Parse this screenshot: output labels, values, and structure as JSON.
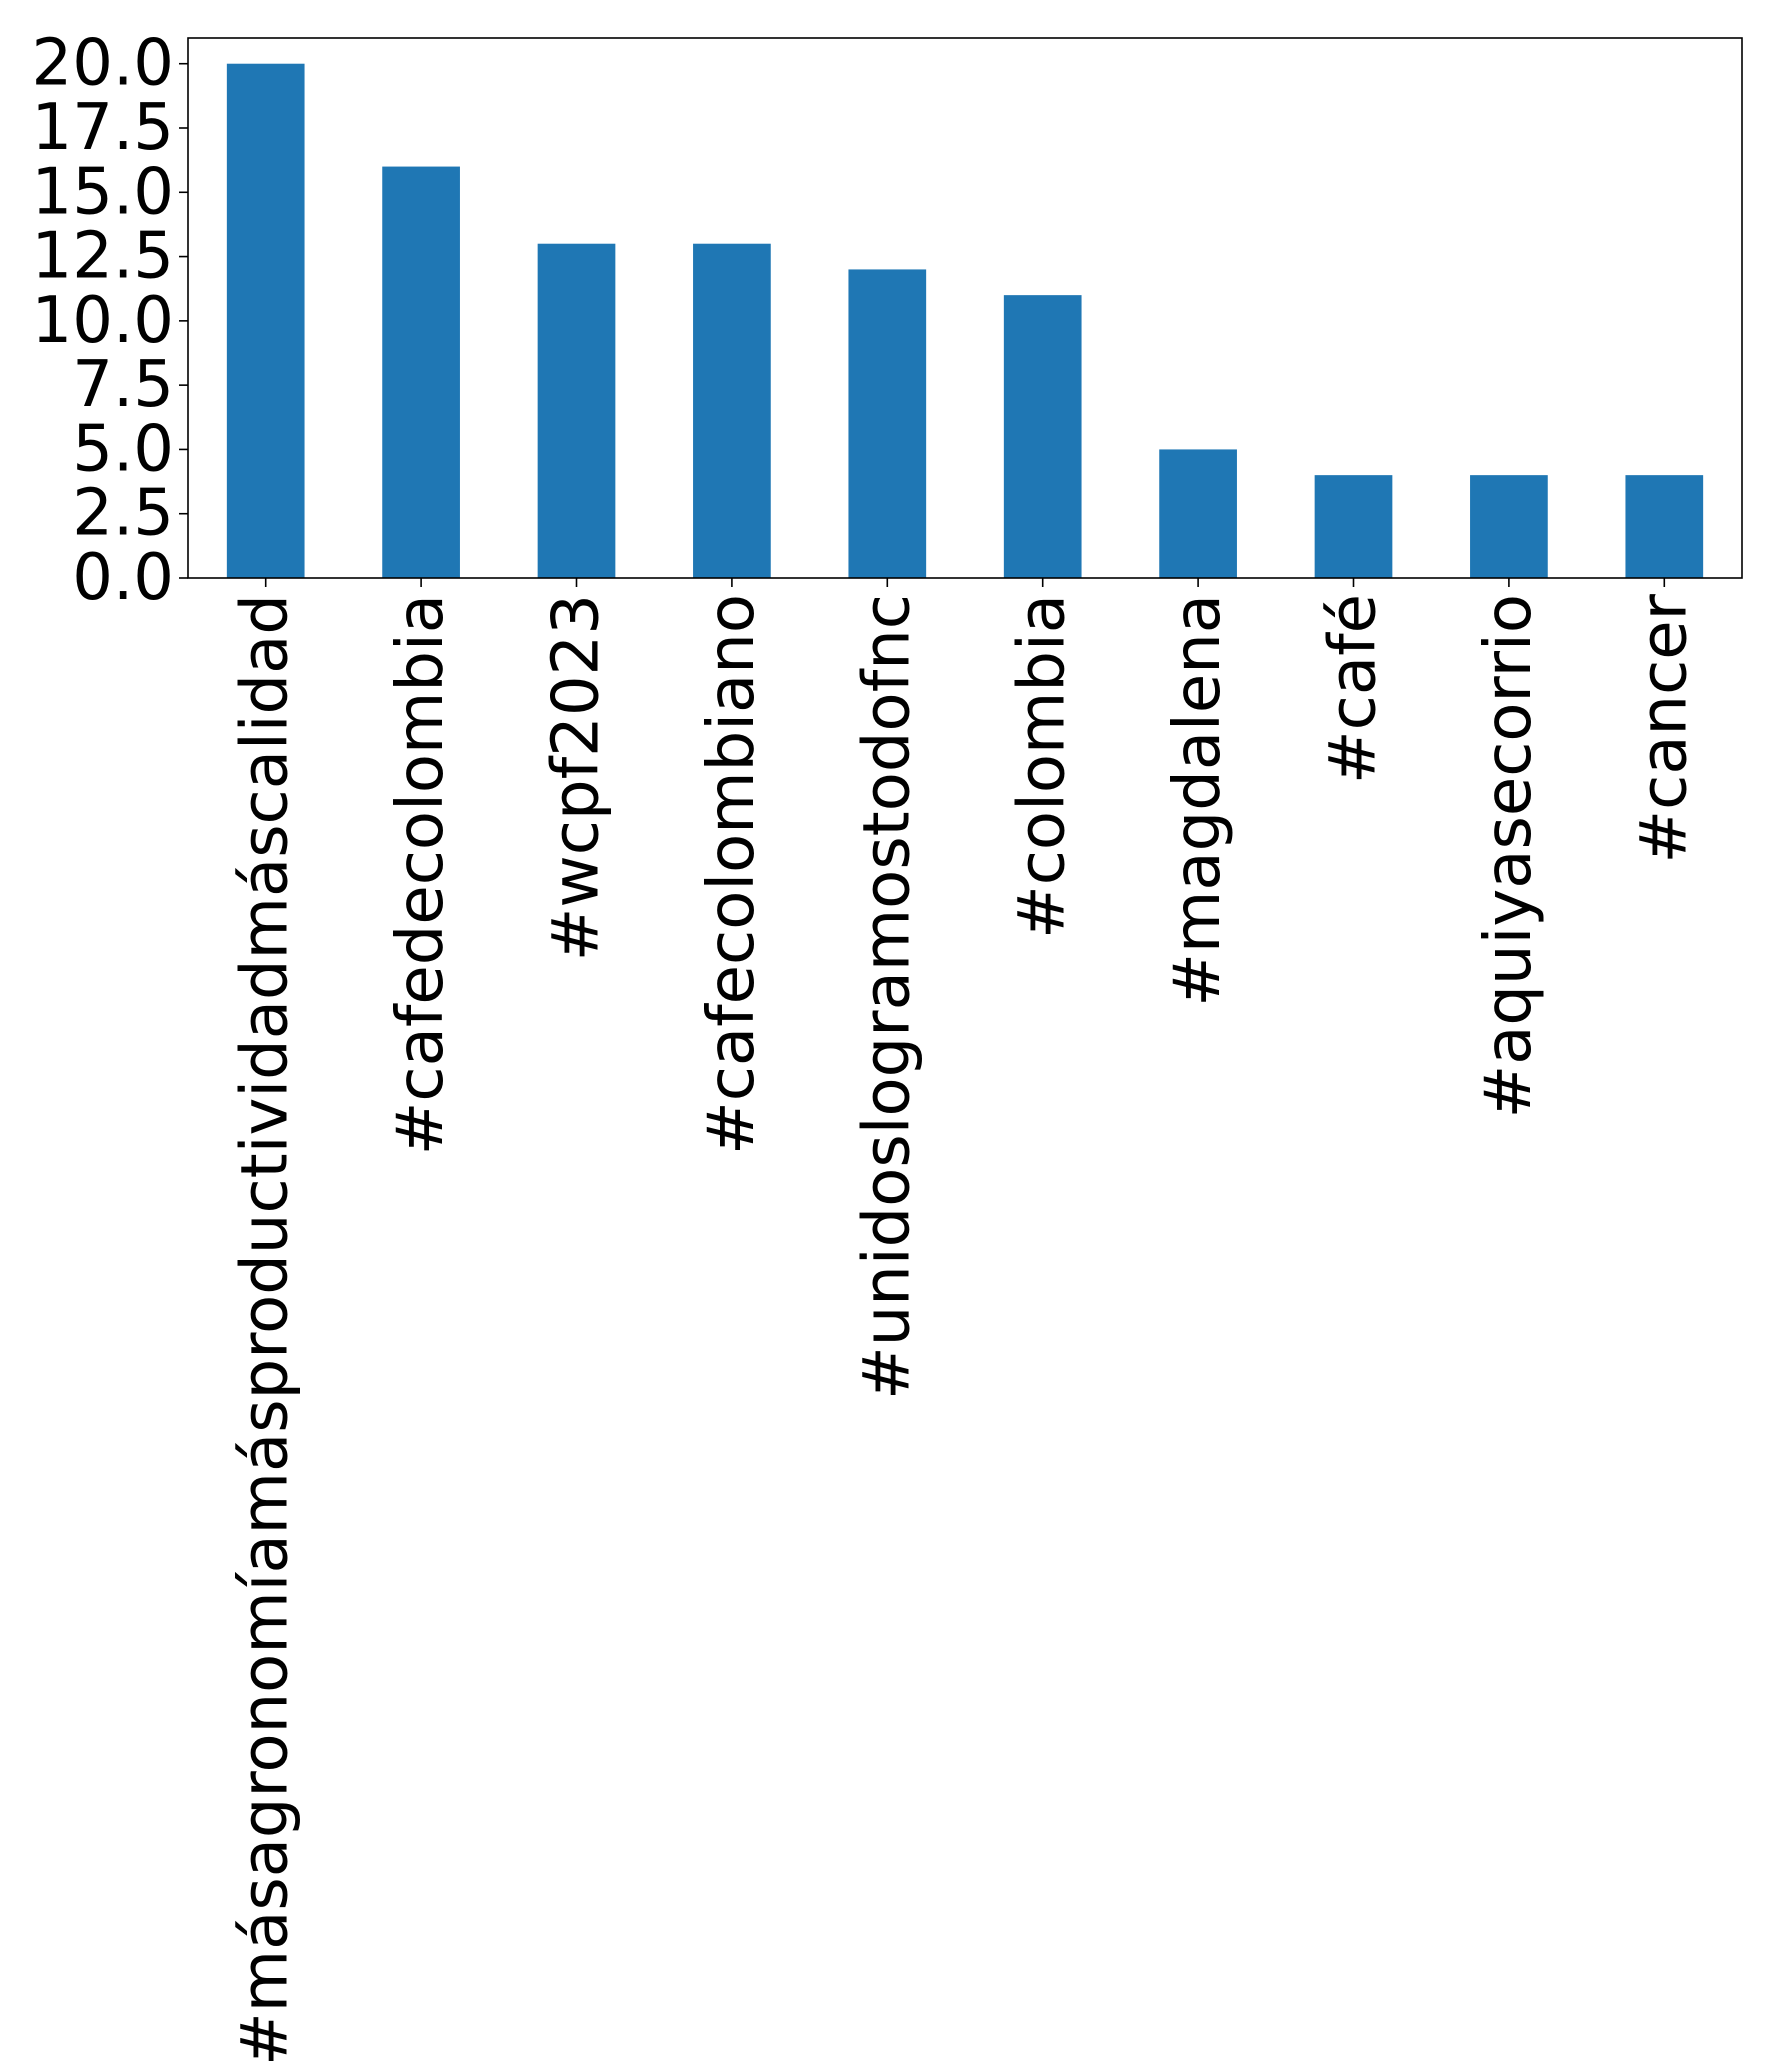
{
  "chart_data": {
    "type": "bar",
    "categories": [
      "#másagronomíamásproductividadmáscalidad",
      "#cafedecolombia",
      "#wcpf2023",
      "#cafecolombiano",
      "#unidoslogramostodofnc",
      "#colombia",
      "#magdalena",
      "#café",
      "#aquiyasecorrio",
      "#cancer"
    ],
    "values": [
      20,
      16,
      13,
      13,
      12,
      11,
      5,
      4,
      4,
      4
    ],
    "ylim": [
      0,
      21
    ],
    "yticks": [
      0,
      2.5,
      5,
      7.5,
      10,
      12.5,
      15,
      17.5,
      20
    ],
    "ytick_labels": [
      "0.0",
      "2.5",
      "5.0",
      "7.5",
      "10.0",
      "12.5",
      "15.0",
      "17.5",
      "20.0"
    ],
    "title": "",
    "xlabel": "",
    "ylabel": "",
    "grid": false,
    "legend": "none",
    "bar_color": "#1f77b4"
  }
}
